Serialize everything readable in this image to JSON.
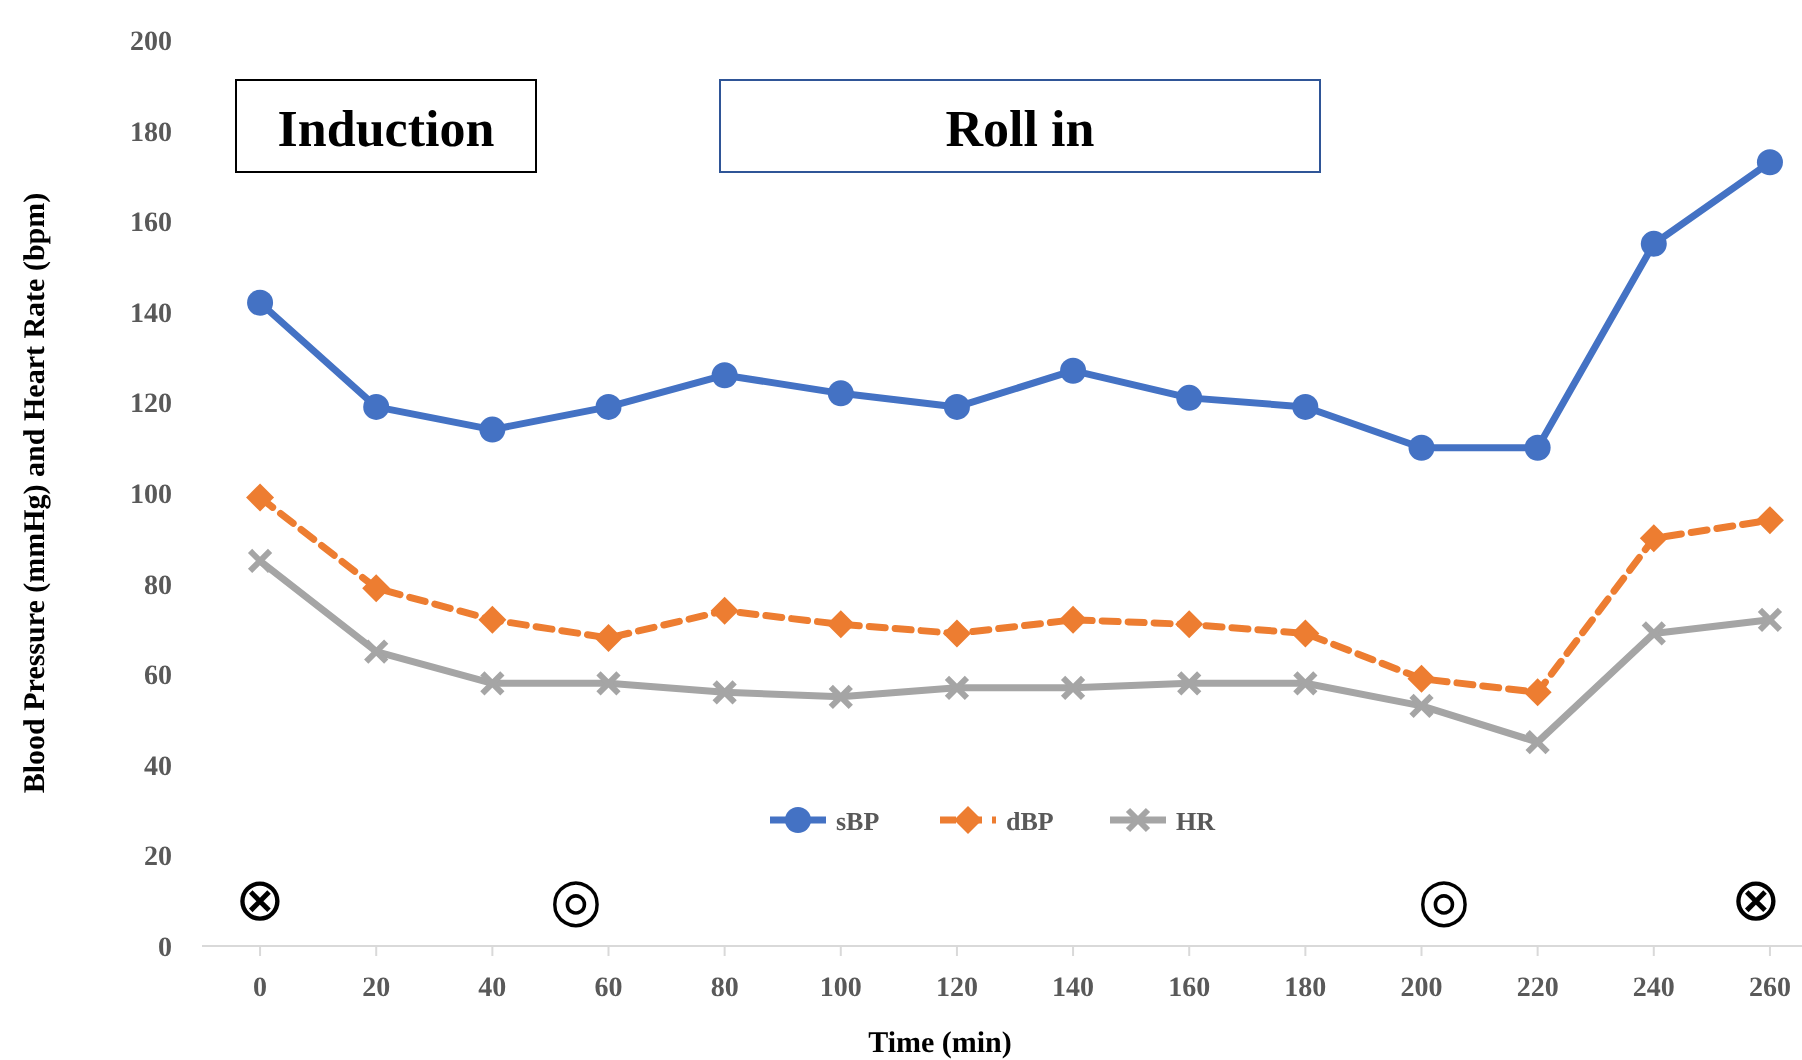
{
  "chart_data": {
    "type": "line",
    "xlabel": "Time (min)",
    "ylabel": "Blood Pressure (mmHg) and Heart Rate (bpm)",
    "x": [
      0,
      20,
      40,
      60,
      80,
      100,
      120,
      140,
      160,
      180,
      200,
      220,
      240,
      260
    ],
    "xlim": [
      -10,
      270
    ],
    "xticks": [
      0,
      20,
      40,
      60,
      80,
      100,
      120,
      140,
      160,
      180,
      200,
      220,
      240,
      260
    ],
    "ylim": [
      0,
      200
    ],
    "yticks": [
      0,
      20,
      40,
      60,
      80,
      100,
      120,
      140,
      160,
      180,
      200
    ],
    "grid": false,
    "legend": "bottom",
    "series": [
      {
        "name": "sBP",
        "color": "#4472c4",
        "marker": "circle",
        "line_style": "solid",
        "values": [
          142,
          119,
          114,
          119,
          126,
          122,
          119,
          127,
          121,
          119,
          110,
          110,
          155,
          173
        ]
      },
      {
        "name": "dBP",
        "color": "#ed7d31",
        "marker": "diamond",
        "line_style": "dashed",
        "values": [
          99,
          79,
          72,
          68,
          74,
          71,
          69,
          72,
          71,
          69,
          59,
          56,
          90,
          94
        ]
      },
      {
        "name": "HR",
        "color": "#a5a5a5",
        "marker": "cross",
        "line_style": "solid",
        "values": [
          85,
          65,
          58,
          58,
          56,
          55,
          57,
          57,
          58,
          58,
          53,
          45,
          69,
          72
        ]
      }
    ],
    "annotations": [
      "Induction",
      "Roll in",
      "⊗",
      "◎",
      "◎",
      "⊗"
    ]
  }
}
